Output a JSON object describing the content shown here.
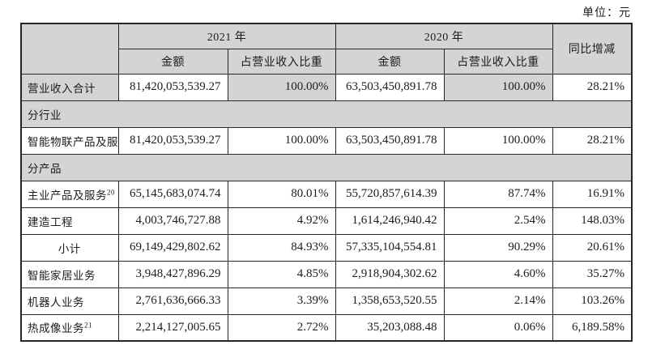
{
  "unit_label": "单位：元",
  "colors": {
    "header_bg": "#d4d4d4",
    "section_row_bg": "#d4d4d4",
    "shaded_cell_bg": "#d4d4d4",
    "border": "#262626",
    "text": "#1c1c1c",
    "page_bg": "#ffffff"
  },
  "table": {
    "col_headers": {
      "year_2021": "2021 年",
      "year_2020": "2020 年",
      "yoy": "同比增减",
      "amount_2021": "金额",
      "share_2021": "占营业收入比重",
      "amount_2020": "金额",
      "share_2020": "占营业收入比重"
    },
    "rows": [
      {
        "type": "data",
        "label": "营业收入合计",
        "sup": "",
        "label_align": "left",
        "shaded": [
          true,
          false,
          true,
          false,
          true,
          false
        ],
        "values": [
          "81,420,053,539.27",
          "100.00%",
          "63,503,450,891.78",
          "100.00%",
          "28.21%"
        ]
      },
      {
        "type": "section",
        "label": "分行业"
      },
      {
        "type": "data",
        "label": "智能物联产品及服务",
        "sup": "",
        "label_align": "left",
        "shaded": [
          false,
          false,
          false,
          false,
          false,
          false
        ],
        "values": [
          "81,420,053,539.27",
          "100.00%",
          "63,503,450,891.78",
          "100.00%",
          "28.21%"
        ]
      },
      {
        "type": "section",
        "label": "分产品"
      },
      {
        "type": "data",
        "label": "主业产品及服务",
        "sup": "20",
        "label_align": "left",
        "shaded": [
          false,
          false,
          false,
          false,
          false,
          false
        ],
        "values": [
          "65,145,683,074.74",
          "80.01%",
          "55,720,857,614.39",
          "87.74%",
          "16.91%"
        ]
      },
      {
        "type": "data",
        "label": "建造工程",
        "sup": "",
        "label_align": "left",
        "shaded": [
          false,
          false,
          false,
          false,
          false,
          false
        ],
        "values": [
          "4,003,746,727.88",
          "4.92%",
          "1,614,246,940.42",
          "2.54%",
          "148.03%"
        ]
      },
      {
        "type": "data",
        "label": "小计",
        "sup": "",
        "label_align": "center",
        "shaded": [
          false,
          false,
          false,
          false,
          false,
          false
        ],
        "values": [
          "69,149,429,802.62",
          "84.93%",
          "57,335,104,554.81",
          "90.29%",
          "20.61%"
        ]
      },
      {
        "type": "data",
        "label": "智能家居业务",
        "sup": "",
        "label_align": "left",
        "shaded": [
          false,
          false,
          false,
          false,
          false,
          false
        ],
        "values": [
          "3,948,427,896.29",
          "4.85%",
          "2,918,904,302.62",
          "4.60%",
          "35.27%"
        ]
      },
      {
        "type": "data",
        "label": "机器人业务",
        "sup": "",
        "label_align": "left",
        "shaded": [
          false,
          false,
          false,
          false,
          false,
          false
        ],
        "values": [
          "2,761,636,666.33",
          "3.39%",
          "1,358,653,520.55",
          "2.14%",
          "103.26%"
        ]
      },
      {
        "type": "data",
        "label": "热成像业务",
        "sup": "21",
        "label_align": "left",
        "shaded": [
          false,
          false,
          false,
          false,
          false,
          false
        ],
        "values": [
          "2,214,127,005.65",
          "2.72%",
          "35,203,088.48",
          "0.06%",
          "6,189.58%"
        ]
      }
    ]
  }
}
